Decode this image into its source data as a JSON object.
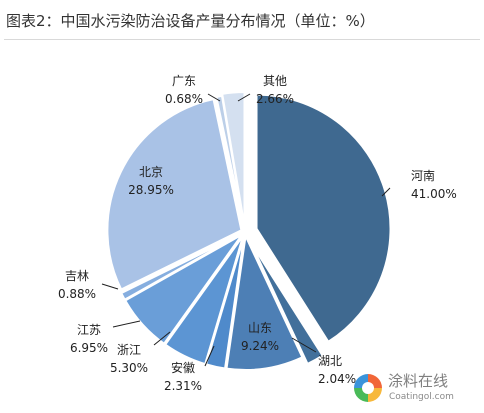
{
  "page": {
    "title": "图表2：中国水污染防治设备产量分布情况（单位：%）"
  },
  "watermark": {
    "name": "涂料在线",
    "site": "Coatingol.com"
  },
  "chart_data": {
    "type": "pie",
    "title": "图表2：中国水污染防治设备产量分布情况（单位：%）",
    "unit": "%",
    "slices": [
      {
        "name": "河南",
        "value": 41.0,
        "label": "41.00%",
        "color": "#3f6990"
      },
      {
        "name": "湖北",
        "value": 2.04,
        "label": "2.04%",
        "color": "#42709b"
      },
      {
        "name": "山东",
        "value": 9.24,
        "label": "9.24%",
        "color": "#4d7fb5"
      },
      {
        "name": "安徽",
        "value": 2.31,
        "label": "2.31%",
        "color": "#4f8acb"
      },
      {
        "name": "浙江",
        "value": 5.3,
        "label": "5.30%",
        "color": "#5c95d3"
      },
      {
        "name": "江苏",
        "value": 6.95,
        "label": "6.95%",
        "color": "#6a9ed8"
      },
      {
        "name": "吉林",
        "value": 0.88,
        "label": "0.88%",
        "color": "#86aedf"
      },
      {
        "name": "北京",
        "value": 28.95,
        "label": "28.95%",
        "color": "#a9c2e6"
      },
      {
        "name": "广东",
        "value": 0.68,
        "label": "0.68%",
        "color": "#bccfe8"
      },
      {
        "name": "其他",
        "value": 2.66,
        "label": "2.66%",
        "color": "#d4e0f0"
      }
    ]
  }
}
